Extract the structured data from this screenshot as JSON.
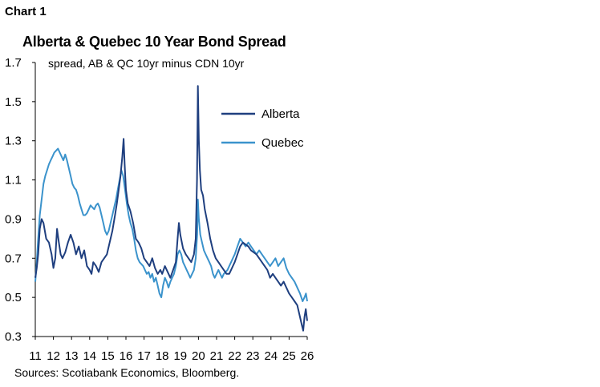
{
  "header": {
    "chart_number": "Chart 1",
    "title": "Alberta & Quebec 10 Year Bond Spread",
    "source": "Sources: Scotiabank Economics, Bloomberg."
  },
  "chart_data": {
    "type": "line",
    "title": "Alberta & Quebec 10 Year Bond Spread",
    "subtitle": "spread, AB & QC 10yr minus CDN 10yr",
    "xlabel": "",
    "ylabel": "",
    "xlim": [
      2011,
      2026
    ],
    "ylim": [
      0.3,
      1.7
    ],
    "x_ticks": [
      "11",
      "12",
      "13",
      "14",
      "15",
      "16",
      "17",
      "18",
      "19",
      "20",
      "21",
      "22",
      "23",
      "24",
      "25",
      "26"
    ],
    "y_ticks": [
      "0.3",
      "0.5",
      "0.7",
      "0.9",
      "1.1",
      "1.3",
      "1.5",
      "1.7"
    ],
    "legend_position": "top-right",
    "grid": false,
    "series": [
      {
        "name": "Alberta",
        "color": "#1f3f7f",
        "points": [
          [
            2011.0,
            0.6
          ],
          [
            2011.08,
            0.65
          ],
          [
            2011.16,
            0.72
          ],
          [
            2011.25,
            0.85
          ],
          [
            2011.35,
            0.9
          ],
          [
            2011.45,
            0.88
          ],
          [
            2011.6,
            0.8
          ],
          [
            2011.75,
            0.78
          ],
          [
            2011.9,
            0.72
          ],
          [
            2012.0,
            0.65
          ],
          [
            2012.1,
            0.7
          ],
          [
            2012.2,
            0.85
          ],
          [
            2012.3,
            0.78
          ],
          [
            2012.4,
            0.72
          ],
          [
            2012.5,
            0.7
          ],
          [
            2012.65,
            0.73
          ],
          [
            2012.8,
            0.78
          ],
          [
            2012.95,
            0.82
          ],
          [
            2013.1,
            0.78
          ],
          [
            2013.25,
            0.72
          ],
          [
            2013.4,
            0.76
          ],
          [
            2013.55,
            0.7
          ],
          [
            2013.7,
            0.74
          ],
          [
            2013.85,
            0.66
          ],
          [
            2014.0,
            0.64
          ],
          [
            2014.1,
            0.62
          ],
          [
            2014.2,
            0.68
          ],
          [
            2014.35,
            0.66
          ],
          [
            2014.5,
            0.63
          ],
          [
            2014.65,
            0.68
          ],
          [
            2014.8,
            0.7
          ],
          [
            2014.95,
            0.72
          ],
          [
            2015.1,
            0.78
          ],
          [
            2015.25,
            0.84
          ],
          [
            2015.4,
            0.92
          ],
          [
            2015.5,
            0.98
          ],
          [
            2015.6,
            1.05
          ],
          [
            2015.7,
            1.12
          ],
          [
            2015.8,
            1.22
          ],
          [
            2015.87,
            1.31
          ],
          [
            2015.93,
            1.18
          ],
          [
            2016.0,
            1.05
          ],
          [
            2016.1,
            0.98
          ],
          [
            2016.25,
            0.94
          ],
          [
            2016.4,
            0.88
          ],
          [
            2016.55,
            0.8
          ],
          [
            2016.7,
            0.78
          ],
          [
            2016.85,
            0.75
          ],
          [
            2017.0,
            0.7
          ],
          [
            2017.15,
            0.68
          ],
          [
            2017.3,
            0.66
          ],
          [
            2017.45,
            0.7
          ],
          [
            2017.6,
            0.65
          ],
          [
            2017.75,
            0.62
          ],
          [
            2017.9,
            0.64
          ],
          [
            2018.0,
            0.62
          ],
          [
            2018.15,
            0.66
          ],
          [
            2018.3,
            0.63
          ],
          [
            2018.45,
            0.6
          ],
          [
            2018.6,
            0.64
          ],
          [
            2018.75,
            0.68
          ],
          [
            2018.85,
            0.8
          ],
          [
            2018.92,
            0.88
          ],
          [
            2019.0,
            0.82
          ],
          [
            2019.15,
            0.75
          ],
          [
            2019.3,
            0.72
          ],
          [
            2019.45,
            0.7
          ],
          [
            2019.6,
            0.68
          ],
          [
            2019.75,
            0.72
          ],
          [
            2019.85,
            0.8
          ],
          [
            2019.92,
            1.1
          ],
          [
            2019.97,
            1.58
          ],
          [
            2020.02,
            1.3
          ],
          [
            2020.08,
            1.15
          ],
          [
            2020.15,
            1.05
          ],
          [
            2020.25,
            1.02
          ],
          [
            2020.35,
            0.95
          ],
          [
            2020.5,
            0.88
          ],
          [
            2020.65,
            0.8
          ],
          [
            2020.8,
            0.74
          ],
          [
            2020.95,
            0.7
          ],
          [
            2021.1,
            0.68
          ],
          [
            2021.25,
            0.66
          ],
          [
            2021.4,
            0.64
          ],
          [
            2021.55,
            0.62
          ],
          [
            2021.7,
            0.62
          ],
          [
            2021.85,
            0.65
          ],
          [
            2022.0,
            0.68
          ],
          [
            2022.15,
            0.72
          ],
          [
            2022.3,
            0.76
          ],
          [
            2022.45,
            0.78
          ],
          [
            2022.6,
            0.77
          ],
          [
            2022.75,
            0.76
          ],
          [
            2022.9,
            0.74
          ],
          [
            2023.05,
            0.73
          ],
          [
            2023.2,
            0.72
          ],
          [
            2023.35,
            0.7
          ],
          [
            2023.5,
            0.68
          ],
          [
            2023.65,
            0.66
          ],
          [
            2023.8,
            0.64
          ],
          [
            2023.95,
            0.6
          ],
          [
            2024.1,
            0.62
          ],
          [
            2024.25,
            0.6
          ],
          [
            2024.4,
            0.58
          ],
          [
            2024.55,
            0.56
          ],
          [
            2024.7,
            0.58
          ],
          [
            2024.85,
            0.55
          ],
          [
            2025.0,
            0.52
          ],
          [
            2025.15,
            0.5
          ],
          [
            2025.3,
            0.48
          ],
          [
            2025.45,
            0.46
          ],
          [
            2025.6,
            0.4
          ],
          [
            2025.7,
            0.36
          ],
          [
            2025.78,
            0.33
          ],
          [
            2025.85,
            0.4
          ],
          [
            2025.92,
            0.44
          ],
          [
            2026.0,
            0.38
          ]
        ]
      },
      {
        "name": "Quebec",
        "color": "#3b93cc",
        "points": [
          [
            2011.0,
            0.58
          ],
          [
            2011.08,
            0.68
          ],
          [
            2011.16,
            0.8
          ],
          [
            2011.25,
            0.92
          ],
          [
            2011.35,
            1.0
          ],
          [
            2011.45,
            1.08
          ],
          [
            2011.55,
            1.12
          ],
          [
            2011.65,
            1.15
          ],
          [
            2011.75,
            1.18
          ],
          [
            2011.85,
            1.2
          ],
          [
            2011.95,
            1.22
          ],
          [
            2012.05,
            1.24
          ],
          [
            2012.15,
            1.25
          ],
          [
            2012.25,
            1.26
          ],
          [
            2012.35,
            1.24
          ],
          [
            2012.45,
            1.22
          ],
          [
            2012.55,
            1.2
          ],
          [
            2012.65,
            1.23
          ],
          [
            2012.75,
            1.2
          ],
          [
            2012.85,
            1.16
          ],
          [
            2012.95,
            1.12
          ],
          [
            2013.05,
            1.08
          ],
          [
            2013.15,
            1.06
          ],
          [
            2013.25,
            1.05
          ],
          [
            2013.35,
            1.02
          ],
          [
            2013.45,
            0.98
          ],
          [
            2013.55,
            0.95
          ],
          [
            2013.65,
            0.92
          ],
          [
            2013.75,
            0.92
          ],
          [
            2013.85,
            0.93
          ],
          [
            2013.95,
            0.95
          ],
          [
            2014.05,
            0.97
          ],
          [
            2014.15,
            0.96
          ],
          [
            2014.25,
            0.95
          ],
          [
            2014.35,
            0.97
          ],
          [
            2014.45,
            0.98
          ],
          [
            2014.55,
            0.96
          ],
          [
            2014.65,
            0.92
          ],
          [
            2014.75,
            0.88
          ],
          [
            2014.85,
            0.84
          ],
          [
            2014.95,
            0.82
          ],
          [
            2015.05,
            0.84
          ],
          [
            2015.15,
            0.88
          ],
          [
            2015.25,
            0.92
          ],
          [
            2015.35,
            0.96
          ],
          [
            2015.45,
            1.0
          ],
          [
            2015.55,
            1.05
          ],
          [
            2015.65,
            1.1
          ],
          [
            2015.75,
            1.15
          ],
          [
            2015.85,
            1.12
          ],
          [
            2015.95,
            1.05
          ],
          [
            2016.05,
            0.98
          ],
          [
            2016.15,
            0.92
          ],
          [
            2016.25,
            0.88
          ],
          [
            2016.35,
            0.85
          ],
          [
            2016.45,
            0.8
          ],
          [
            2016.55,
            0.74
          ],
          [
            2016.65,
            0.7
          ],
          [
            2016.75,
            0.68
          ],
          [
            2016.85,
            0.67
          ],
          [
            2016.95,
            0.66
          ],
          [
            2017.05,
            0.64
          ],
          [
            2017.15,
            0.62
          ],
          [
            2017.25,
            0.63
          ],
          [
            2017.35,
            0.6
          ],
          [
            2017.45,
            0.62
          ],
          [
            2017.55,
            0.58
          ],
          [
            2017.65,
            0.6
          ],
          [
            2017.75,
            0.56
          ],
          [
            2017.85,
            0.52
          ],
          [
            2017.95,
            0.5
          ],
          [
            2018.05,
            0.56
          ],
          [
            2018.15,
            0.6
          ],
          [
            2018.25,
            0.58
          ],
          [
            2018.35,
            0.55
          ],
          [
            2018.45,
            0.58
          ],
          [
            2018.55,
            0.6
          ],
          [
            2018.65,
            0.62
          ],
          [
            2018.75,
            0.66
          ],
          [
            2018.85,
            0.72
          ],
          [
            2018.95,
            0.74
          ],
          [
            2019.05,
            0.72
          ],
          [
            2019.15,
            0.68
          ],
          [
            2019.25,
            0.66
          ],
          [
            2019.35,
            0.64
          ],
          [
            2019.45,
            0.62
          ],
          [
            2019.55,
            0.6
          ],
          [
            2019.65,
            0.62
          ],
          [
            2019.75,
            0.64
          ],
          [
            2019.85,
            0.7
          ],
          [
            2019.93,
            0.82
          ],
          [
            2019.97,
            1.0
          ],
          [
            2020.02,
            0.9
          ],
          [
            2020.1,
            0.82
          ],
          [
            2020.2,
            0.78
          ],
          [
            2020.3,
            0.74
          ],
          [
            2020.4,
            0.72
          ],
          [
            2020.5,
            0.7
          ],
          [
            2020.6,
            0.68
          ],
          [
            2020.7,
            0.66
          ],
          [
            2020.8,
            0.62
          ],
          [
            2020.9,
            0.6
          ],
          [
            2021.0,
            0.62
          ],
          [
            2021.1,
            0.64
          ],
          [
            2021.2,
            0.62
          ],
          [
            2021.3,
            0.6
          ],
          [
            2021.4,
            0.62
          ],
          [
            2021.5,
            0.63
          ],
          [
            2021.6,
            0.64
          ],
          [
            2021.7,
            0.66
          ],
          [
            2021.8,
            0.68
          ],
          [
            2021.9,
            0.7
          ],
          [
            2022.0,
            0.72
          ],
          [
            2022.15,
            0.76
          ],
          [
            2022.3,
            0.8
          ],
          [
            2022.45,
            0.78
          ],
          [
            2022.6,
            0.76
          ],
          [
            2022.75,
            0.78
          ],
          [
            2022.9,
            0.76
          ],
          [
            2023.05,
            0.74
          ],
          [
            2023.2,
            0.72
          ],
          [
            2023.35,
            0.74
          ],
          [
            2023.5,
            0.72
          ],
          [
            2023.65,
            0.7
          ],
          [
            2023.8,
            0.68
          ],
          [
            2023.95,
            0.66
          ],
          [
            2024.1,
            0.68
          ],
          [
            2024.25,
            0.7
          ],
          [
            2024.4,
            0.66
          ],
          [
            2024.55,
            0.68
          ],
          [
            2024.7,
            0.7
          ],
          [
            2024.85,
            0.65
          ],
          [
            2025.0,
            0.62
          ],
          [
            2025.15,
            0.6
          ],
          [
            2025.3,
            0.58
          ],
          [
            2025.45,
            0.55
          ],
          [
            2025.6,
            0.52
          ],
          [
            2025.75,
            0.48
          ],
          [
            2025.85,
            0.5
          ],
          [
            2025.93,
            0.52
          ],
          [
            2026.0,
            0.48
          ]
        ]
      }
    ]
  }
}
